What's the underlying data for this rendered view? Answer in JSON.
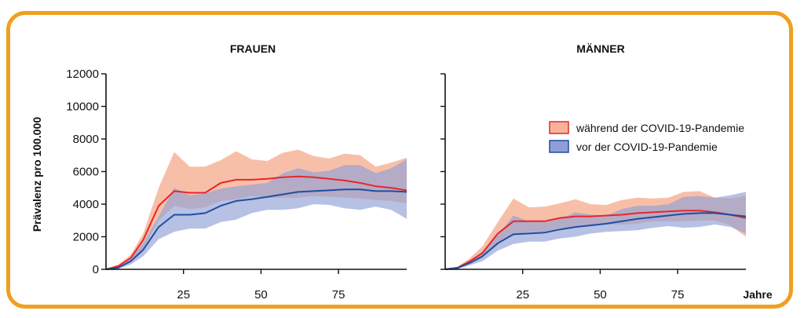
{
  "colors": {
    "frame": "#f0a01e",
    "during_fill": "#f7b499",
    "during_line": "#e8262b",
    "before_fill": "#8f9fd6",
    "before_line": "#1f4ea0"
  },
  "chart_data": [
    {
      "type": "area",
      "title": "FRAUEN",
      "ylabel": "Prävalenz pro 100.000",
      "xlabel": "",
      "xlim": [
        0,
        97
      ],
      "ylim": [
        0,
        12000
      ],
      "yticks": [
        0,
        2000,
        4000,
        6000,
        8000,
        10000,
        12000
      ],
      "ytick_labels": [
        "0",
        "2000",
        "4000",
        "6000",
        "8000",
        "10000",
        "12000"
      ],
      "xticks": [
        25,
        50,
        75
      ],
      "xtick_labels": [
        "25",
        "50",
        "75"
      ],
      "x": [
        0,
        4,
        8,
        12,
        17,
        22,
        27,
        32,
        37,
        42,
        47,
        52,
        57,
        62,
        67,
        72,
        77,
        82,
        87,
        92,
        97
      ],
      "series": [
        {
          "name": "während der COVID-19-Pandemie",
          "mean": [
            0,
            200,
            700,
            1800,
            3900,
            4800,
            4700,
            4700,
            5300,
            5500,
            5500,
            5550,
            5650,
            5700,
            5650,
            5550,
            5450,
            5300,
            5100,
            5000,
            4850
          ],
          "lower": [
            0,
            100,
            500,
            1300,
            3000,
            3900,
            3700,
            3800,
            4200,
            4300,
            4500,
            4400,
            4400,
            4400,
            4500,
            4450,
            4400,
            4350,
            4250,
            4200,
            4050
          ],
          "upper": [
            0,
            300,
            900,
            2200,
            5000,
            7200,
            6300,
            6300,
            6700,
            7250,
            6750,
            6650,
            7150,
            7350,
            6950,
            6800,
            7100,
            7000,
            6300,
            6550,
            6850
          ]
        },
        {
          "name": "vor der COVID-19-Pandemie",
          "mean": [
            0,
            100,
            500,
            1200,
            2600,
            3350,
            3350,
            3450,
            3900,
            4200,
            4300,
            4450,
            4600,
            4750,
            4800,
            4850,
            4900,
            4900,
            4800,
            4800,
            4750
          ],
          "lower": [
            0,
            50,
            300,
            800,
            1850,
            2300,
            2500,
            2500,
            2900,
            3050,
            3450,
            3650,
            3650,
            3750,
            4000,
            3950,
            3750,
            3650,
            3850,
            3650,
            3100
          ],
          "upper": [
            0,
            150,
            700,
            1600,
            3250,
            5000,
            4550,
            4650,
            4950,
            5100,
            5200,
            5300,
            5900,
            6200,
            5950,
            6050,
            6400,
            6400,
            5900,
            6200,
            6750
          ]
        }
      ]
    },
    {
      "type": "area",
      "title": "MÄNNER",
      "ylabel": "",
      "xlabel": "Jahre",
      "xlim": [
        0,
        97
      ],
      "ylim": [
        0,
        12000
      ],
      "yticks": [
        0,
        2000,
        4000,
        6000,
        8000,
        10000,
        12000
      ],
      "xticks": [
        25,
        50,
        75
      ],
      "xtick_labels": [
        "25",
        "50",
        "75"
      ],
      "x": [
        0,
        4,
        8,
        12,
        17,
        22,
        27,
        32,
        37,
        42,
        47,
        52,
        57,
        62,
        67,
        72,
        77,
        82,
        87,
        92,
        97
      ],
      "series": [
        {
          "name": "während der COVID-19-Pandemie",
          "mean": [
            0,
            100,
            500,
            1000,
            2200,
            2950,
            2950,
            2950,
            3150,
            3250,
            3250,
            3300,
            3350,
            3450,
            3500,
            3550,
            3600,
            3600,
            3500,
            3350,
            3150
          ],
          "lower": [
            0,
            50,
            300,
            700,
            1600,
            2100,
            2300,
            2300,
            2550,
            2550,
            2700,
            2750,
            2750,
            2800,
            2950,
            2950,
            2950,
            3000,
            3000,
            2700,
            2000
          ],
          "upper": [
            0,
            150,
            700,
            1400,
            2900,
            4350,
            3800,
            3850,
            4050,
            4300,
            4000,
            3950,
            4250,
            4400,
            4350,
            4400,
            4750,
            4800,
            4400,
            4350,
            4500
          ]
        },
        {
          "name": "vor der COVID-19-Pandemie",
          "mean": [
            0,
            80,
            400,
            800,
            1600,
            2150,
            2200,
            2250,
            2450,
            2600,
            2700,
            2800,
            2950,
            3100,
            3200,
            3300,
            3400,
            3450,
            3450,
            3350,
            3250
          ],
          "lower": [
            0,
            40,
            250,
            500,
            1150,
            1550,
            1700,
            1700,
            1900,
            2000,
            2200,
            2300,
            2350,
            2400,
            2550,
            2650,
            2550,
            2600,
            2750,
            2600,
            2200
          ],
          "upper": [
            0,
            120,
            550,
            1100,
            2100,
            3300,
            2950,
            2900,
            3100,
            3500,
            3350,
            3300,
            3700,
            3900,
            3900,
            4000,
            4450,
            4500,
            4400,
            4550,
            4750
          ]
        }
      ]
    }
  ]
}
